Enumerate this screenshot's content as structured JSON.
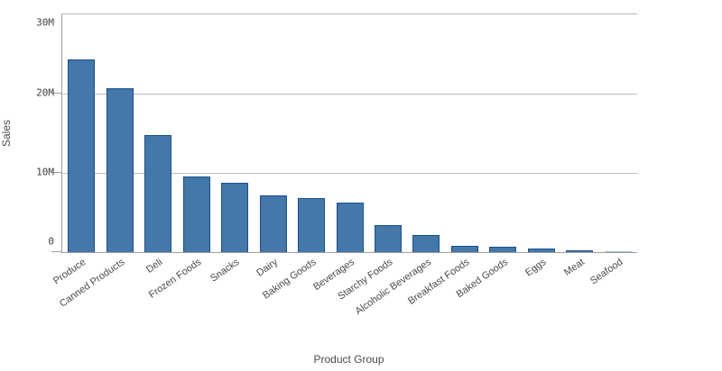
{
  "chart_data": {
    "type": "bar",
    "title": "",
    "xlabel": "Product Group",
    "ylabel": "Sales",
    "categories": [
      "Produce",
      "Canned Products",
      "Deli",
      "Frozen Foods",
      "Snacks",
      "Dairy",
      "Baking Goods",
      "Beverages",
      "Starchy Foods",
      "Alcoholic Beverages",
      "Breakfast Foods",
      "Baked Goods",
      "Eggs",
      "Meat",
      "Seafood"
    ],
    "values_millions": [
      24.3,
      20.7,
      14.8,
      9.6,
      8.7,
      7.2,
      6.8,
      6.3,
      3.4,
      2.2,
      0.8,
      0.65,
      0.45,
      0.25,
      0.15
    ],
    "ylim": [
      0,
      30
    ],
    "ytick_values": [
      0,
      10,
      20,
      30
    ],
    "ytick_labels": [
      "0",
      "10M",
      "20M",
      "30M"
    ],
    "gridline_values": [
      10,
      20
    ],
    "grid": "horizontal",
    "legend": "none",
    "colors": {
      "bar_fill": "#4477aa",
      "bar_border": "#17508d",
      "bar_fill_light": "#ccdbe8",
      "bar_border_light": "#9dbdd4",
      "gridline": "#bdbdbd",
      "axis_line": "#9e9e9e",
      "text": "#4a4a4a"
    }
  }
}
